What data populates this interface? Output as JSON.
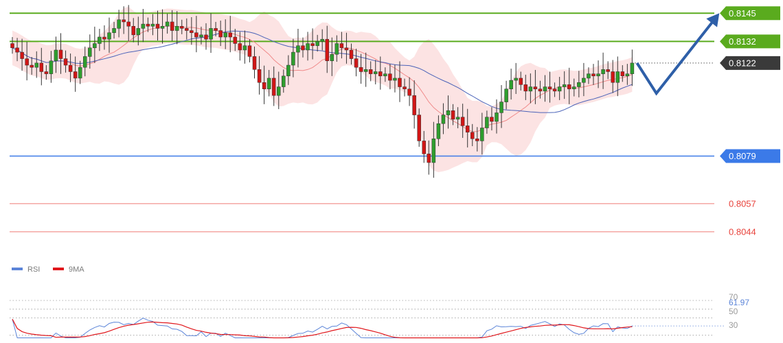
{
  "chart_data": [
    {
      "type": "candlestick",
      "title": "",
      "ylim": [
        0.8037,
        0.8147
      ],
      "current_price": "0.8122",
      "levels": [
        {
          "value": 0.8145,
          "label": "0.8145",
          "kind": "resistance",
          "color": "#5aab1e"
        },
        {
          "value": 0.8132,
          "label": "0.8132",
          "kind": "resistance",
          "color": "#5aab1e"
        },
        {
          "value": 0.8079,
          "label": "0.8079",
          "kind": "support",
          "color": "#3b7ae8"
        },
        {
          "value": 0.8057,
          "label": "0.8057",
          "kind": "support",
          "color": "#e8423b"
        },
        {
          "value": 0.8044,
          "label": "0.8044",
          "kind": "support",
          "color": "#e8423b"
        }
      ],
      "current_price_color": "#3a3a3a",
      "projection": [
        {
          "bar": 129,
          "price": 0.8122
        },
        {
          "bar": 133,
          "price": 0.8108
        },
        {
          "bar": 146,
          "price": 0.8145
        }
      ],
      "projection_color": "#2e5fa8",
      "closes": [
        0.8129,
        0.8127,
        0.8124,
        0.8121,
        0.812,
        0.8122,
        0.8118,
        0.8117,
        0.8123,
        0.8128,
        0.8124,
        0.8121,
        0.8118,
        0.8115,
        0.812,
        0.8125,
        0.8129,
        0.8131,
        0.8134,
        0.8133,
        0.8136,
        0.8138,
        0.8142,
        0.8141,
        0.8139,
        0.8135,
        0.8138,
        0.814,
        0.8139,
        0.814,
        0.8138,
        0.8139,
        0.8141,
        0.8137,
        0.8139,
        0.8138,
        0.8137,
        0.8136,
        0.8134,
        0.8135,
        0.8133,
        0.8138,
        0.8137,
        0.8134,
        0.8136,
        0.8134,
        0.8131,
        0.8128,
        0.813,
        0.8125,
        0.8119,
        0.8113,
        0.811,
        0.8115,
        0.8107,
        0.8111,
        0.8116,
        0.8121,
        0.8127,
        0.813,
        0.8128,
        0.8131,
        0.813,
        0.8132,
        0.8133,
        0.8123,
        0.8126,
        0.8131,
        0.8129,
        0.8128,
        0.8124,
        0.812,
        0.8118,
        0.8119,
        0.8117,
        0.8118,
        0.8116,
        0.8117,
        0.8114,
        0.8115,
        0.8111,
        0.811,
        0.8107,
        0.8098,
        0.8086,
        0.808,
        0.8076,
        0.8087,
        0.8094,
        0.8098,
        0.81,
        0.8096,
        0.8097,
        0.8093,
        0.809,
        0.8087,
        0.8086,
        0.8092,
        0.8097,
        0.8095,
        0.8099,
        0.8104,
        0.811,
        0.8114,
        0.8115,
        0.8112,
        0.8109,
        0.8111,
        0.811,
        0.8109,
        0.8111,
        0.811,
        0.8109,
        0.8111,
        0.8112,
        0.811,
        0.8111,
        0.8113,
        0.8115,
        0.8117,
        0.8116,
        0.8117,
        0.8119,
        0.8118,
        0.8113,
        0.8118,
        0.8116,
        0.8117,
        0.8122
      ]
    },
    {
      "type": "line",
      "title": "",
      "series": [
        {
          "name": "RSI",
          "color": "#5b84d8"
        },
        {
          "name": "9MA",
          "color": "#e0161b"
        }
      ],
      "current_value": "61.97",
      "ylim": [
        25,
        100
      ],
      "ticks": [
        "70",
        "50",
        "30"
      ],
      "tick_values": [
        70,
        60,
        50,
        30
      ]
    }
  ]
}
